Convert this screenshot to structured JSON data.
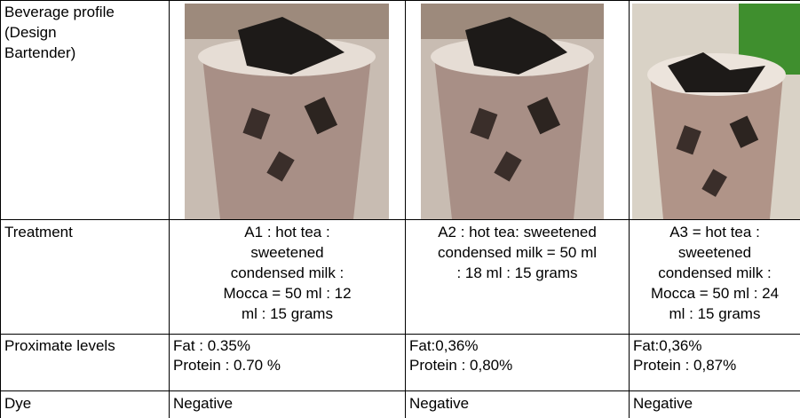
{
  "table": {
    "rows": [
      [
        "Beverage profile\n(Design\nBartender)"
      ],
      [
        "Treatment",
        "A1 : hot tea :\nsweetened\ncondensed milk :\nMocca = 50 ml : 12\nml : 15 grams",
        "A2 : hot tea: sweetened\ncondensed milk = 50 ml\n: 18 ml : 15 grams",
        "A3 = hot tea :\nsweetened\ncondensed milk :\nMocca = 50 ml : 24\nml : 15 grams"
      ],
      [
        "Proximate levels",
        "Fat : 0.35%\nProtein : 0.70 %",
        "Fat:0,36%\nProtein : 0,80%",
        "Fat:0,36%\nProtein : 0,87%"
      ],
      [
        "Dye",
        "Negative",
        "Negative",
        "Negative"
      ]
    ]
  }
}
